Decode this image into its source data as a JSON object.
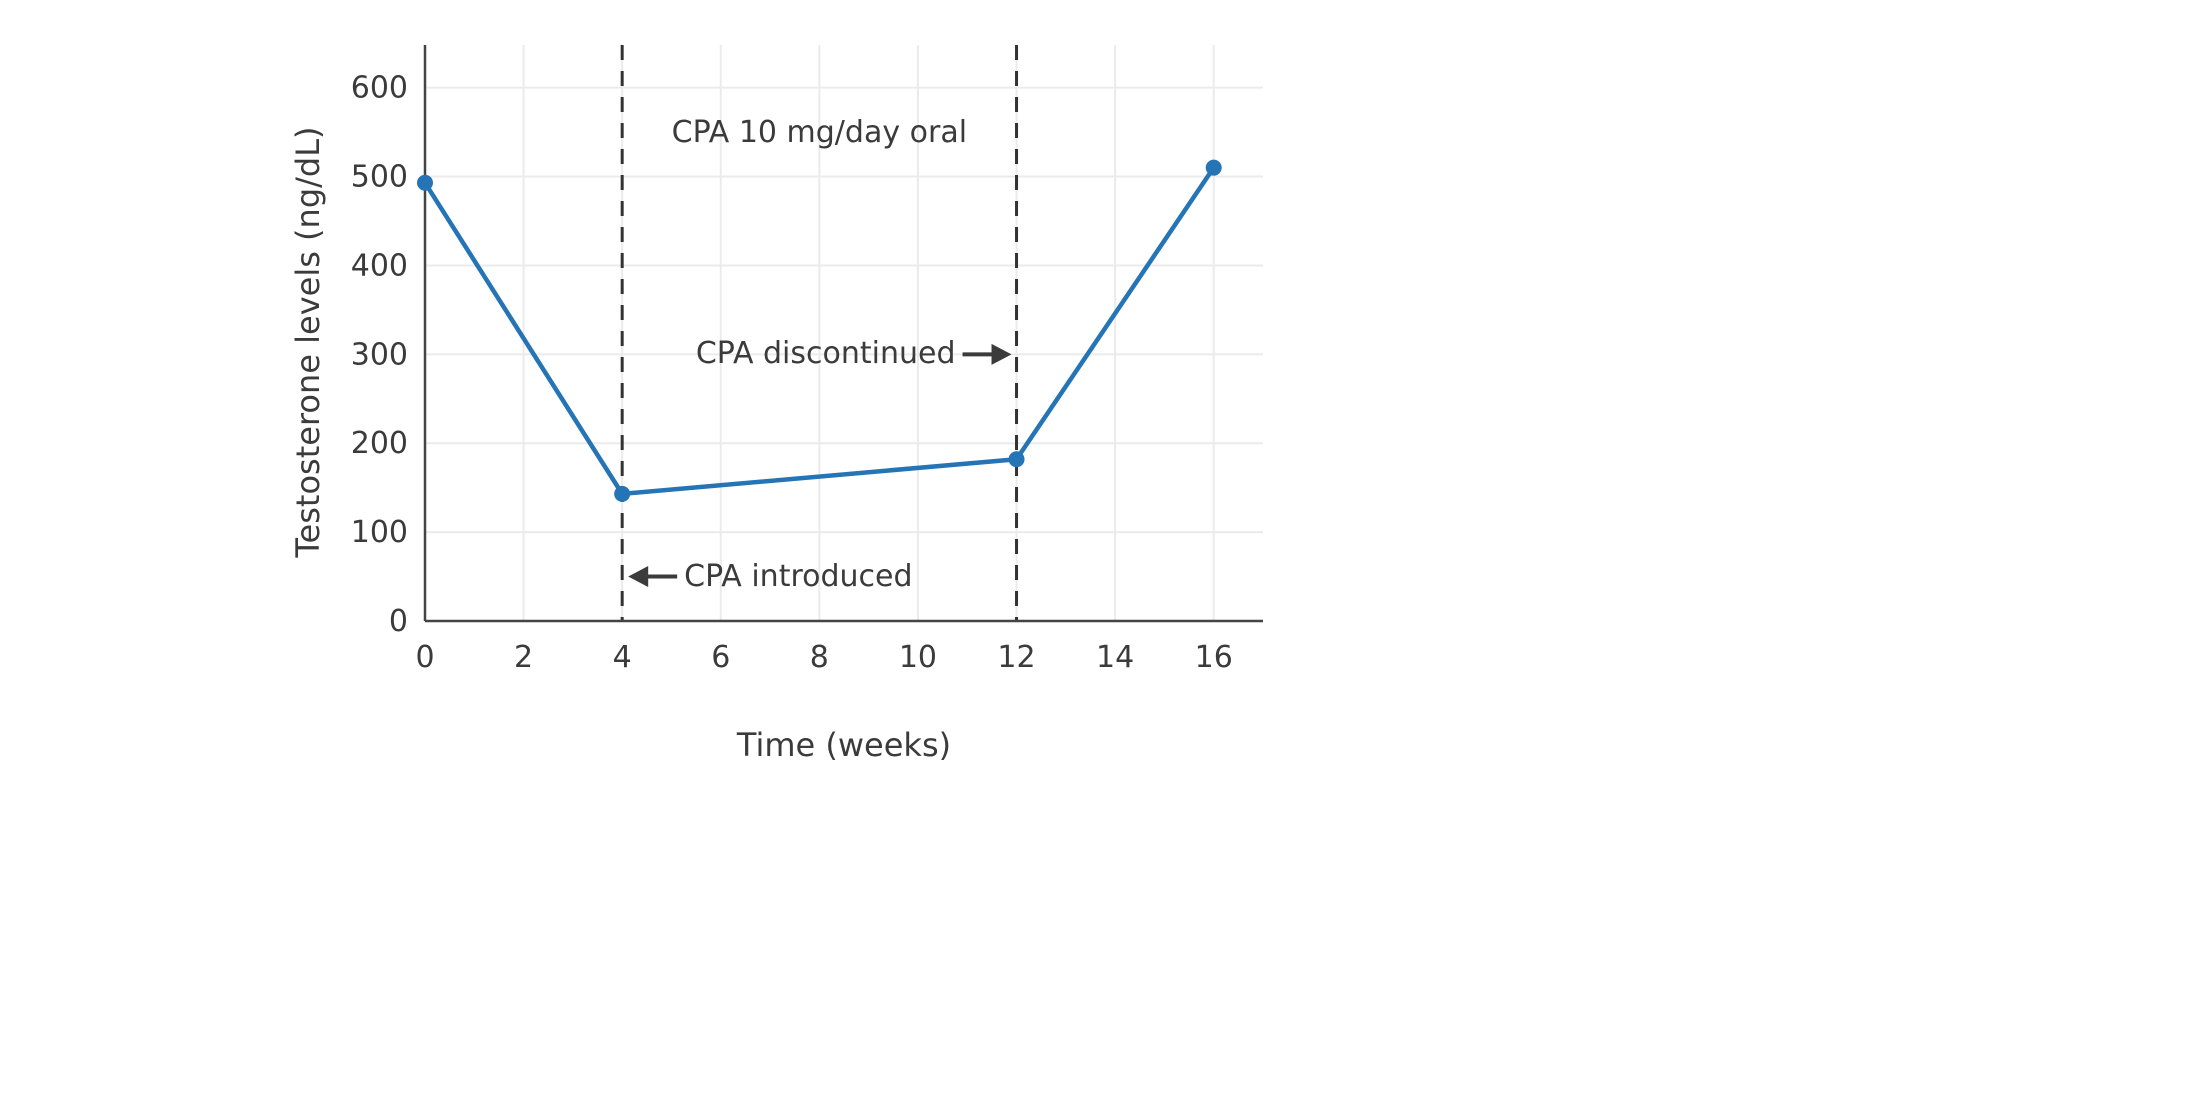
{
  "chart_data": {
    "type": "line",
    "title": "",
    "xlabel": "Time (weeks)",
    "ylabel": "Testosterone levels (ng/dL)",
    "x": [
      0,
      4,
      12,
      16
    ],
    "series": [
      {
        "name": "testosterone",
        "values": [
          493,
          143,
          182,
          510
        ],
        "color": "#2474b6"
      }
    ],
    "x_ticks": [
      0,
      2,
      4,
      6,
      8,
      10,
      12,
      14,
      16
    ],
    "y_ticks": [
      0,
      100,
      200,
      300,
      400,
      500,
      600
    ],
    "xlim": [
      0,
      17
    ],
    "ylim": [
      0,
      648
    ],
    "grid": true,
    "legend": "none",
    "marker": "circle",
    "reference_lines": [
      {
        "axis": "x",
        "value": 4,
        "style": "dashed"
      },
      {
        "axis": "x",
        "value": 12,
        "style": "dashed"
      }
    ],
    "annotations": [
      {
        "id": "cpa-oral",
        "text": "CPA 10 mg/day oral",
        "x": 8,
        "y": 549,
        "anchor": "center",
        "arrow": "none"
      },
      {
        "id": "cpa-discontinued",
        "text": "CPA discontinued",
        "x": 12,
        "y": 300,
        "anchor": "end",
        "arrow": "right"
      },
      {
        "id": "cpa-introduced",
        "text": "CPA introduced",
        "x": 4,
        "y": 50,
        "anchor": "start",
        "arrow": "left"
      }
    ]
  },
  "colors": {
    "grid": "#ebebeb",
    "axis": "#444444",
    "reference": "#333333",
    "text": "#3b3b3b",
    "background": "#ffffff"
  }
}
